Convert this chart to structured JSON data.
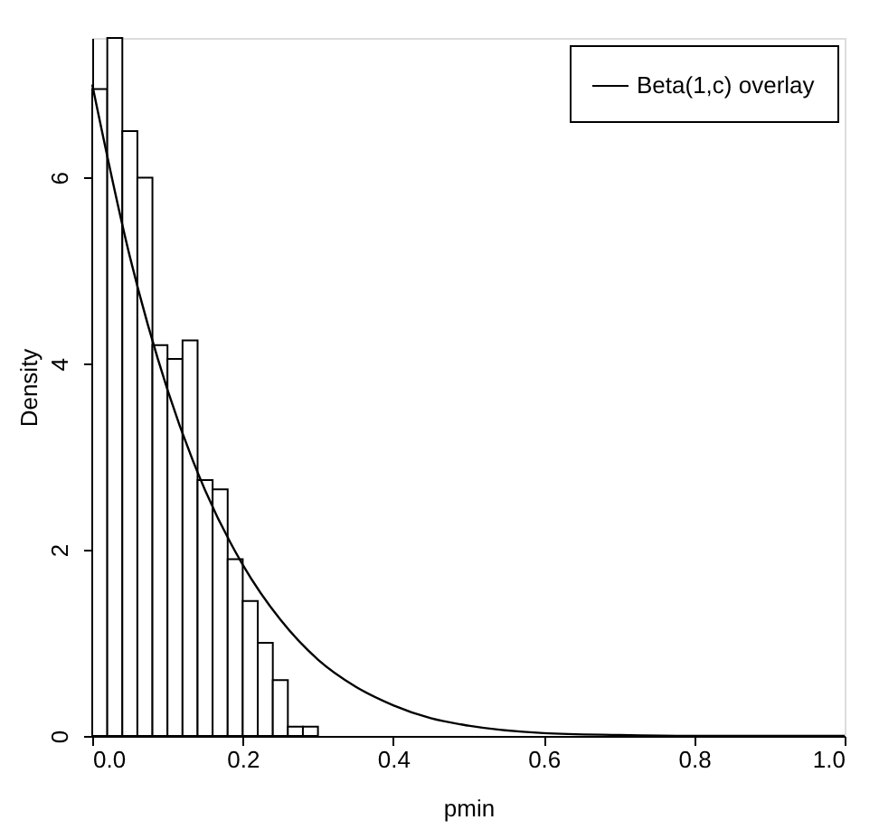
{
  "chart_data": {
    "type": "histogram",
    "xlabel": "pmin",
    "ylabel": "Density",
    "bins": [
      0,
      0.02,
      0.04,
      0.06,
      0.08,
      0.1,
      0.12,
      0.14,
      0.16,
      0.18,
      0.2,
      0.22,
      0.24,
      0.26,
      0.28,
      0.3
    ],
    "values": [
      6.95,
      7.5,
      6.5,
      6.0,
      4.2,
      4.05,
      4.25,
      2.75,
      2.65,
      1.9,
      1.45,
      1.0,
      0.6,
      0.1,
      0.1
    ],
    "color": "#ffffff",
    "series": [
      {
        "type": "line",
        "name": "Beta(1,c) overlay",
        "color": "#000000",
        "x": [
          0,
          0.05,
          0.1,
          0.15,
          0.2,
          0.25,
          0.3,
          0.35,
          0.4,
          0.45,
          0.5,
          0.6,
          0.7,
          0.8,
          0.9,
          1.0
        ],
        "values": [
          7.0,
          5.15,
          3.72,
          2.64,
          1.84,
          1.25,
          0.82,
          0.53,
          0.33,
          0.19,
          0.11,
          0.03,
          0.01,
          0,
          0,
          0
        ]
      }
    ],
    "xlim": [
      0,
      1
    ],
    "xticks": [
      {
        "value": 0,
        "label": "0.0"
      },
      0.2,
      0.4,
      0.6,
      0.8,
      {
        "value": 1,
        "label": "1.0"
      }
    ],
    "ylim": [
      0,
      7.5
    ],
    "yticks": [
      0,
      2,
      4,
      6
    ],
    "grid": false,
    "legend": "top right"
  }
}
